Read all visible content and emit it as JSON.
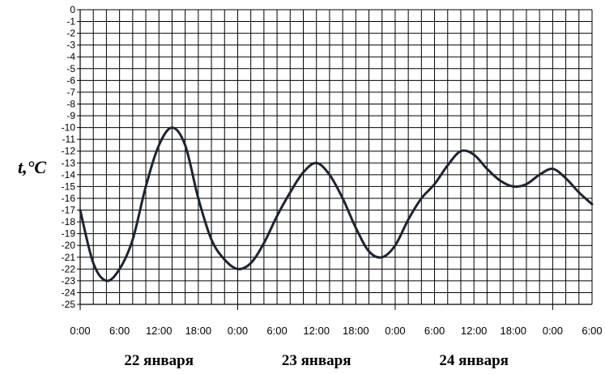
{
  "chart_data": {
    "type": "line",
    "ylabel": "t,°C",
    "ylim": [
      -25,
      0
    ],
    "y_ticks": [
      "0",
      "-1",
      "-2",
      "-3",
      "-4",
      "-5",
      "-6",
      "-7",
      "-8",
      "-9",
      "-10",
      "-11",
      "-12",
      "-13",
      "-14",
      "-15",
      "-16",
      "-17",
      "-18",
      "-19",
      "-20",
      "-21",
      "-22",
      "-23",
      "-24",
      "-25"
    ],
    "x_ticks": [
      "0:00",
      "6:00",
      "12:00",
      "18:00",
      "0:00",
      "6:00",
      "12:00",
      "18:00",
      "0:00",
      "6:00",
      "12:00",
      "18:00",
      "0:00",
      "6:00"
    ],
    "x_hours": [
      0,
      6,
      12,
      18,
      24,
      30,
      36,
      42,
      48,
      54,
      60,
      66,
      72,
      78
    ],
    "xlim": [
      0,
      78
    ],
    "day_labels": [
      "22 января",
      "23 января",
      "24 января"
    ],
    "grid": true,
    "series": [
      {
        "color": "#1c2433",
        "x": [
          0,
          2,
          4,
          6,
          8,
          10,
          12,
          14,
          16,
          18,
          20,
          22,
          24,
          26,
          28,
          30,
          32,
          34,
          36,
          38,
          40,
          42,
          44,
          46,
          48,
          50,
          52,
          54,
          56,
          58,
          60,
          62,
          64,
          66,
          68,
          70,
          72,
          74,
          76,
          78
        ],
        "y": [
          -17,
          -21.5,
          -23,
          -22,
          -19.5,
          -15,
          -11.5,
          -10,
          -11.5,
          -16,
          -19.5,
          -21.2,
          -22,
          -21.5,
          -19.8,
          -17.5,
          -15.5,
          -13.8,
          -13,
          -14,
          -16,
          -18.5,
          -20.5,
          -21,
          -20,
          -17.8,
          -16,
          -14.8,
          -13.2,
          -12,
          -12.3,
          -13.5,
          -14.5,
          -15,
          -14.8,
          -14,
          -13.5,
          -14.3,
          -15.5,
          -16.5
        ]
      }
    ]
  }
}
